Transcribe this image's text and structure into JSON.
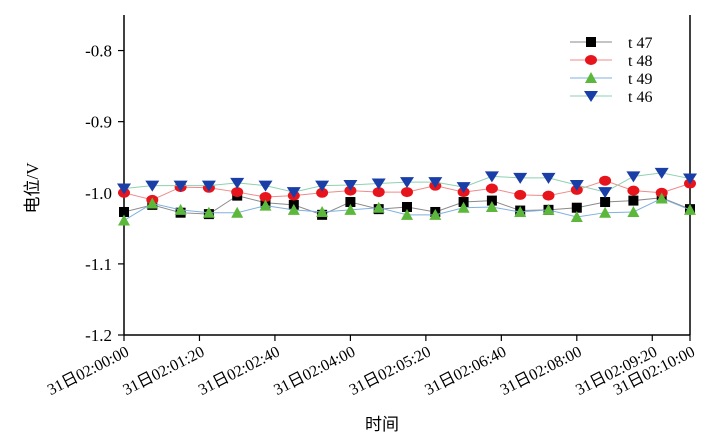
{
  "chart_data": {
    "type": "line",
    "title": "",
    "xlabel": "时间",
    "ylabel": "电位/V",
    "ylim": [
      -1.2,
      -0.75
    ],
    "yticks": [
      -0.8,
      -0.9,
      -1.0,
      -1.1,
      -1.2
    ],
    "ytick_labels": [
      "-0.8",
      "-0.9",
      "-1.0",
      "-1.1",
      "-1.2"
    ],
    "x_seconds_range": [
      0,
      600
    ],
    "x_step_seconds": 30,
    "xticks_seconds": [
      0,
      80,
      160,
      240,
      320,
      400,
      480,
      560,
      600
    ],
    "xtick_labels": [
      "31日02:00:00",
      "31日02:01:20",
      "31日02:02:40",
      "31日02:04:00",
      "31日02:05:20",
      "31日02:06:40",
      "31日02:08:00",
      "31日02:09:20",
      "31日02:10:00"
    ],
    "grid": false,
    "legend_position": "top-right",
    "series": [
      {
        "name": "t 47",
        "color": "#000000",
        "line_color": "#8a8a8a",
        "marker": "square",
        "values": [
          -1.027,
          -1.017,
          -1.028,
          -1.03,
          -1.004,
          -1.014,
          -1.017,
          -1.031,
          -1.013,
          -1.023,
          -1.02,
          -1.027,
          -1.013,
          -1.011,
          -1.025,
          -1.024,
          -1.021,
          -1.013,
          -1.011,
          -1.007,
          -1.023
        ]
      },
      {
        "name": "t 48",
        "color": "#e8141c",
        "line_color": "#f08a8a",
        "marker": "circle",
        "values": [
          -1.0,
          -1.01,
          -0.992,
          -0.993,
          -0.999,
          -1.006,
          -1.004,
          -1.0,
          -0.997,
          -0.999,
          -0.999,
          -0.99,
          -0.999,
          -0.994,
          -1.003,
          -1.004,
          -0.996,
          -0.983,
          -0.997,
          -1.0,
          -0.987
        ]
      },
      {
        "name": "t 49",
        "color": "#5cb83a",
        "line_color": "#7fb0e0",
        "marker": "triangle-up",
        "values": [
          -1.039,
          -1.015,
          -1.024,
          -1.028,
          -1.028,
          -1.018,
          -1.024,
          -1.027,
          -1.024,
          -1.021,
          -1.031,
          -1.031,
          -1.021,
          -1.02,
          -1.027,
          -1.024,
          -1.034,
          -1.028,
          -1.027,
          -1.008,
          -1.024
        ]
      },
      {
        "name": "t 46",
        "color": "#1a3ea8",
        "line_color": "#8fd0b0",
        "marker": "triangle-down",
        "values": [
          -0.994,
          -0.99,
          -0.99,
          -0.99,
          -0.986,
          -0.99,
          -0.999,
          -0.99,
          -0.989,
          -0.987,
          -0.985,
          -0.985,
          -0.992,
          -0.977,
          -0.979,
          -0.979,
          -0.989,
          -0.999,
          -0.977,
          -0.972,
          -0.98
        ]
      }
    ]
  }
}
